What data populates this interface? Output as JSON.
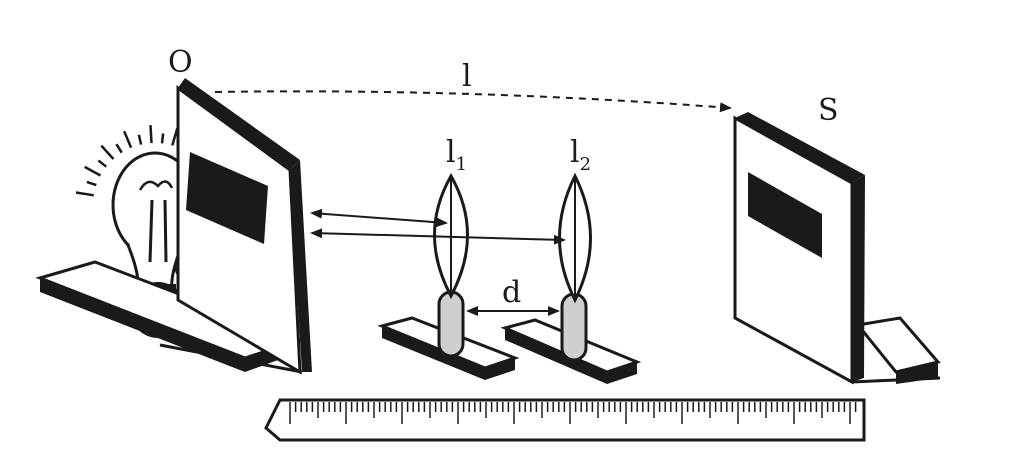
{
  "labels": {
    "object": "O",
    "distance_total": "l",
    "lens1": "l",
    "lens1_sub": "1",
    "lens2": "l",
    "lens2_sub": "2",
    "separation": "d",
    "screen": "S"
  },
  "icons": [
    "light-bulb-icon",
    "object-board-icon",
    "convex-lens-icon",
    "lens-holder-icon",
    "screen-icon",
    "measuring-scale-icon"
  ],
  "colors": {
    "ink": "#1a1a1a",
    "lens_stem": "#cfcfcf",
    "screen_face": "#ffffff",
    "background": "#ffffff"
  }
}
